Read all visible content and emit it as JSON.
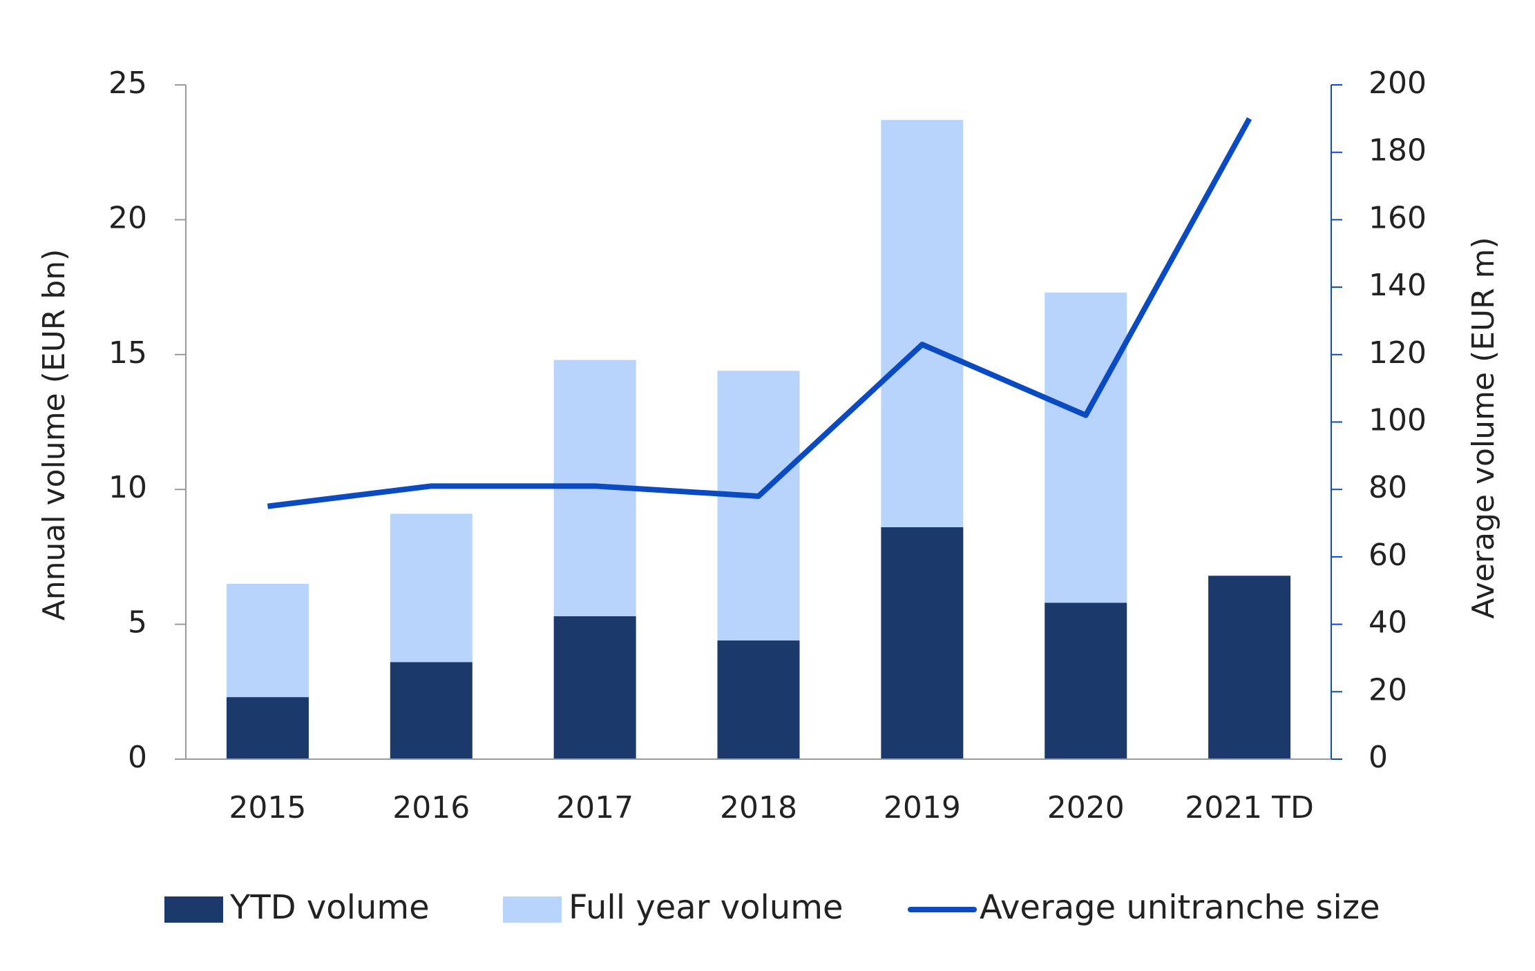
{
  "chart_data": {
    "type": "bar",
    "stacked": true,
    "categories": [
      "2015",
      "2016",
      "2017",
      "2018",
      "2019",
      "2020",
      "2021 TD"
    ],
    "y_label": "Annual volume (EUR bn)",
    "y2_label": "Average volume (EUR m)",
    "ylim": [
      0,
      25
    ],
    "yticks": [
      0,
      5,
      10,
      15,
      20,
      25
    ],
    "y2lim": [
      0,
      200
    ],
    "y2ticks": [
      0,
      20,
      40,
      60,
      80,
      100,
      120,
      140,
      160,
      180,
      200
    ],
    "legend": "bottom",
    "series": [
      {
        "name": "YTD volume",
        "type": "bar",
        "color": "#1b3a6b",
        "values": [
          2.3,
          3.6,
          5.3,
          4.4,
          8.6,
          5.8,
          6.8
        ]
      },
      {
        "name": "Full year volume",
        "type": "bar",
        "color": "#b8d4fc",
        "values": [
          4.2,
          5.5,
          9.5,
          10.0,
          15.1,
          11.5,
          null
        ]
      },
      {
        "name": "Average unitranche size",
        "type": "line",
        "axis": "y2",
        "color": "#0a4ac2",
        "values": [
          75,
          81,
          81,
          78,
          123,
          102,
          190
        ]
      }
    ]
  }
}
